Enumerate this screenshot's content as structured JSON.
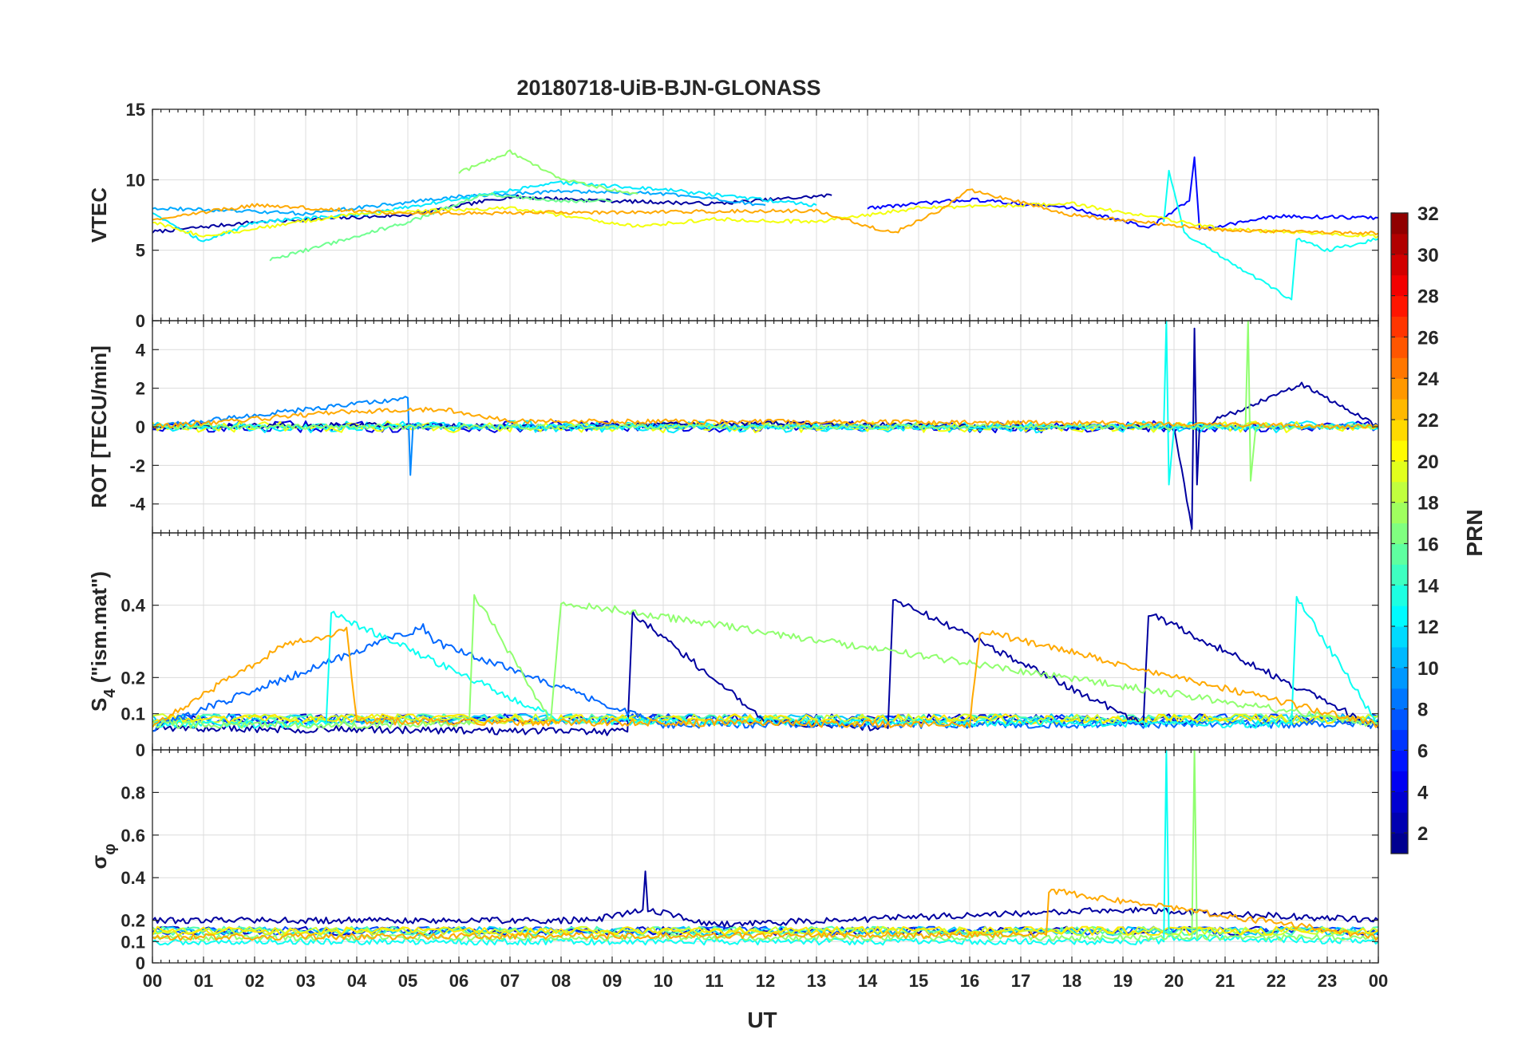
{
  "chart_data": {
    "type": "line",
    "title": "20180718-UiB-BJN-GLONASS",
    "xlabel": "UT",
    "x_range_hours": [
      0,
      24
    ],
    "x_tick_labels": [
      "00",
      "01",
      "02",
      "03",
      "04",
      "05",
      "06",
      "07",
      "08",
      "09",
      "10",
      "11",
      "12",
      "13",
      "14",
      "15",
      "16",
      "17",
      "18",
      "19",
      "20",
      "21",
      "22",
      "23",
      "00"
    ],
    "grid": true,
    "colormap": "jet",
    "colorbar": {
      "label": "PRN",
      "range": [
        1,
        32
      ],
      "tick_labels": [
        "2",
        "4",
        "6",
        "8",
        "10",
        "12",
        "14",
        "16",
        "18",
        "20",
        "22",
        "24",
        "26",
        "28",
        "30",
        "32"
      ],
      "placement": "right"
    },
    "panels": [
      {
        "name": "VTEC",
        "ylabel": "VTEC",
        "ylim": [
          0,
          15
        ],
        "y_tick_labels": [
          "0",
          "5",
          "10",
          "15"
        ],
        "series": [
          {
            "prn": 2,
            "t": [
              0.0,
              2.0,
              5.0,
              7.0,
              9.0,
              11.0,
              13.3
            ],
            "values": [
              6.3,
              7.0,
              7.5,
              8.8,
              8.5,
              8.3,
              8.9
            ]
          },
          {
            "prn": 5,
            "t": [
              14.0,
              16.0,
              18.0,
              19.5,
              20.3,
              20.4,
              20.5,
              22.0,
              24.0
            ],
            "values": [
              8.0,
              8.6,
              8.0,
              6.6,
              8.5,
              11.6,
              6.5,
              7.4,
              7.3
            ]
          },
          {
            "prn": 10,
            "t": [
              0.0,
              3.0,
              6.0,
              8.0,
              10.0,
              12.0
            ],
            "values": [
              8.0,
              7.6,
              8.8,
              9.2,
              9.0,
              8.2
            ]
          },
          {
            "prn": 12,
            "t": [
              0.0,
              1.0,
              2.0,
              4.0,
              8.0,
              10.0,
              13.0
            ],
            "values": [
              7.7,
              5.6,
              7.0,
              7.5,
              9.8,
              9.3,
              8.2
            ]
          },
          {
            "prn": 13,
            "t": [
              19.8,
              19.9,
              20.2,
              22.3,
              22.4,
              23.0,
              24.0
            ],
            "values": [
              7.0,
              10.7,
              6.2,
              1.5,
              5.8,
              5.0,
              5.8
            ]
          },
          {
            "prn": 16,
            "t": [
              2.3,
              5.0,
              6.5,
              8.0,
              9.0
            ],
            "values": [
              4.3,
              7.0,
              9.0,
              8.5,
              8.5
            ]
          },
          {
            "prn": 17,
            "t": [
              6.0,
              7.0,
              8.0,
              9.5
            ],
            "values": [
              10.5,
              12.0,
              10.0,
              9.0
            ]
          },
          {
            "prn": 20,
            "t": [
              0.0,
              1.0,
              4.0,
              7.0,
              9.5,
              11.0,
              13.0,
              15.0,
              18.0,
              21.0,
              24.0
            ],
            "values": [
              7.0,
              6.0,
              7.6,
              8.0,
              6.7,
              7.2,
              7.0,
              8.0,
              8.3,
              6.5,
              6.0
            ]
          },
          {
            "prn": 23,
            "t": [
              0.0,
              2.0,
              5.0,
              13.0,
              14.5,
              15.5,
              16.0,
              18.0,
              21.0,
              24.0
            ],
            "values": [
              7.2,
              8.2,
              7.6,
              7.8,
              6.2,
              8.0,
              9.3,
              7.5,
              6.4,
              6.2
            ]
          }
        ]
      },
      {
        "name": "ROT",
        "ylabel": "ROT [TECU/min]",
        "ylim": [
          -5.5,
          5.5
        ],
        "y_tick_labels": [
          "-4",
          "-2",
          "0",
          "2",
          "4"
        ],
        "series": [
          {
            "prn": 2,
            "t": [
              0.0,
              4.0,
              8.0,
              12.0,
              16.0,
              20.0,
              20.35,
              20.4,
              20.45,
              20.5,
              22.5,
              24.0
            ],
            "values": [
              0.0,
              0.1,
              0.0,
              0.2,
              0.0,
              0.0,
              -5.3,
              5.1,
              -3.0,
              0.0,
              2.2,
              0.0
            ]
          },
          {
            "prn": 9,
            "t": [
              0.0,
              5.0,
              5.05,
              5.1,
              12.0,
              24.0
            ],
            "values": [
              0.0,
              1.5,
              -2.5,
              0.0,
              0.0,
              0.0
            ]
          },
          {
            "prn": 13,
            "t": [
              0.0,
              19.8,
              19.85,
              19.9,
              20.0,
              24.0
            ],
            "values": [
              0.0,
              0.0,
              5.5,
              -3.0,
              0.0,
              0.0
            ]
          },
          {
            "prn": 17,
            "t": [
              0.0,
              21.4,
              21.45,
              21.5,
              21.6,
              24.0
            ],
            "values": [
              0.0,
              0.0,
              5.5,
              -2.8,
              0.0,
              0.0
            ]
          },
          {
            "prn": 23,
            "t": [
              0.0,
              3.9,
              5.7,
              7.0,
              18.0,
              24.0
            ],
            "values": [
              0.0,
              0.8,
              0.9,
              0.3,
              0.2,
              0.0
            ]
          }
        ]
      },
      {
        "name": "S4",
        "ylabel": "S4 (\"ism.mat\")",
        "ylabel_main": "S",
        "ylabel_sub": "4",
        "ylabel_rest": " (\"ism.mat\")",
        "ylim": [
          0,
          0.6
        ],
        "y_tick_labels": [
          "0",
          "0.1",
          "0.2",
          "0.4"
        ],
        "baseline_range": [
          0.05,
          0.12
        ],
        "series": [
          {
            "prn": 2,
            "t": [
              0.0,
              9.3,
              9.4,
              12.0,
              14.4,
              14.5,
              19.4,
              19.5,
              24.0
            ],
            "values": [
              0.06,
              0.05,
              0.38,
              0.08,
              0.06,
              0.42,
              0.07,
              0.38,
              0.06
            ]
          },
          {
            "prn": 8,
            "t": [
              0.0,
              5.3,
              5.5,
              10.0,
              24.0
            ],
            "values": [
              0.06,
              0.34,
              0.3,
              0.07,
              0.07
            ]
          },
          {
            "prn": 13,
            "t": [
              0.0,
              3.4,
              3.5,
              8.0,
              22.3,
              22.4,
              24.0
            ],
            "values": [
              0.07,
              0.07,
              0.38,
              0.08,
              0.07,
              0.42,
              0.07
            ]
          },
          {
            "prn": 17,
            "t": [
              0.0,
              6.2,
              6.3,
              7.8,
              8.0,
              24.0
            ],
            "values": [
              0.07,
              0.07,
              0.43,
              0.08,
              0.41,
              0.07
            ]
          },
          {
            "prn": 23,
            "t": [
              0.0,
              2.6,
              3.8,
              4.0,
              16.0,
              16.2,
              24.0
            ],
            "values": [
              0.07,
              0.29,
              0.33,
              0.08,
              0.07,
              0.33,
              0.07
            ]
          }
        ]
      },
      {
        "name": "sigma_phi",
        "ylabel": "σ φ",
        "ylabel_main": "σ",
        "ylabel_sub": "φ",
        "ylim": [
          0,
          1
        ],
        "y_tick_labels": [
          "0",
          "0.1",
          "0.2",
          "0.4",
          "0.6",
          "0.8"
        ],
        "baseline_range": [
          0.1,
          0.2
        ],
        "series": [
          {
            "prn": 2,
            "t": [
              0.0,
              8.6,
              9.6,
              9.65,
              9.7,
              11.0,
              19.0,
              24.0
            ],
            "values": [
              0.2,
              0.2,
              0.25,
              0.43,
              0.25,
              0.18,
              0.25,
              0.2
            ]
          },
          {
            "prn": 13,
            "t": [
              0.0,
              19.8,
              19.85,
              19.9,
              24.0
            ],
            "values": [
              0.1,
              0.1,
              1.0,
              0.12,
              0.1
            ]
          },
          {
            "prn": 17,
            "t": [
              0.0,
              20.35,
              20.4,
              20.45,
              24.0
            ],
            "values": [
              0.12,
              0.12,
              1.0,
              0.12,
              0.12
            ]
          },
          {
            "prn": 23,
            "t": [
              0.0,
              12.0,
              17.5,
              17.55,
              24.0
            ],
            "values": [
              0.12,
              0.13,
              0.13,
              0.34,
              0.12
            ]
          }
        ]
      }
    ]
  }
}
